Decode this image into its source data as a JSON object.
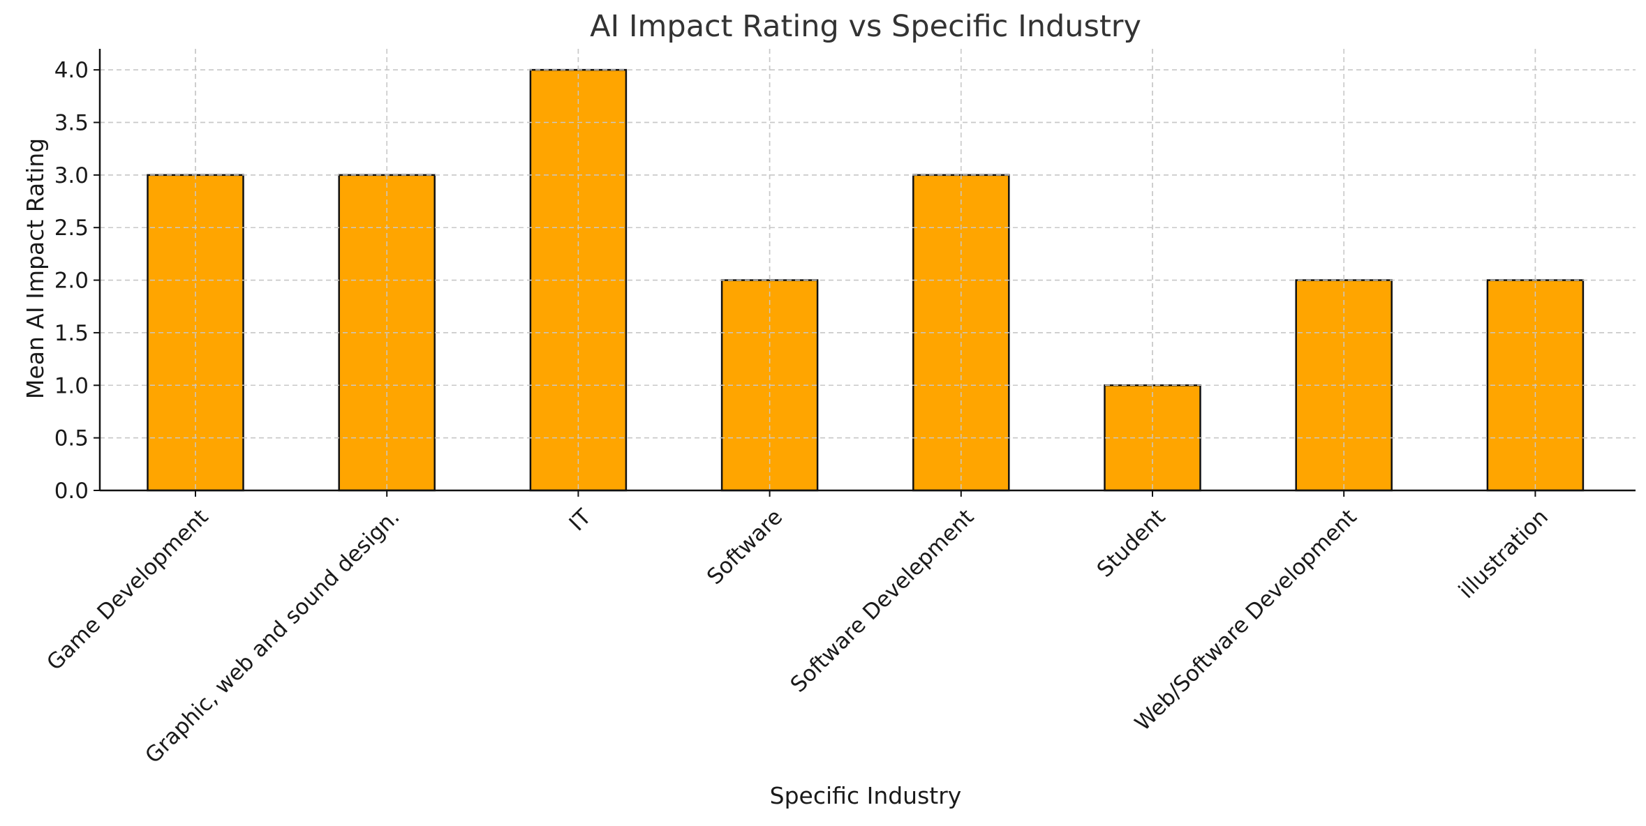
{
  "chart_data": {
    "type": "bar",
    "title": "AI Impact Rating vs Specific Industry",
    "xlabel": "Specific Industry",
    "ylabel": "Mean AI Impact Rating",
    "categories": [
      "Game Development",
      "Graphic, web and sound design.",
      "IT",
      "Software",
      "Software Develepment",
      "Student",
      "Web/Software Development",
      "illustration"
    ],
    "values": [
      3,
      3,
      4,
      2,
      3,
      1,
      2,
      2
    ],
    "ylim": [
      0,
      4.2
    ],
    "yticks": [
      0.0,
      0.5,
      1.0,
      1.5,
      2.0,
      2.5,
      3.0,
      3.5,
      4.0
    ],
    "ytick_labels": [
      "0.0",
      "0.5",
      "1.0",
      "1.5",
      "2.0",
      "2.5",
      "3.0",
      "3.5",
      "4.0"
    ],
    "grid": true,
    "bar_color": "#FFA500",
    "edge_color": "#111111"
  }
}
